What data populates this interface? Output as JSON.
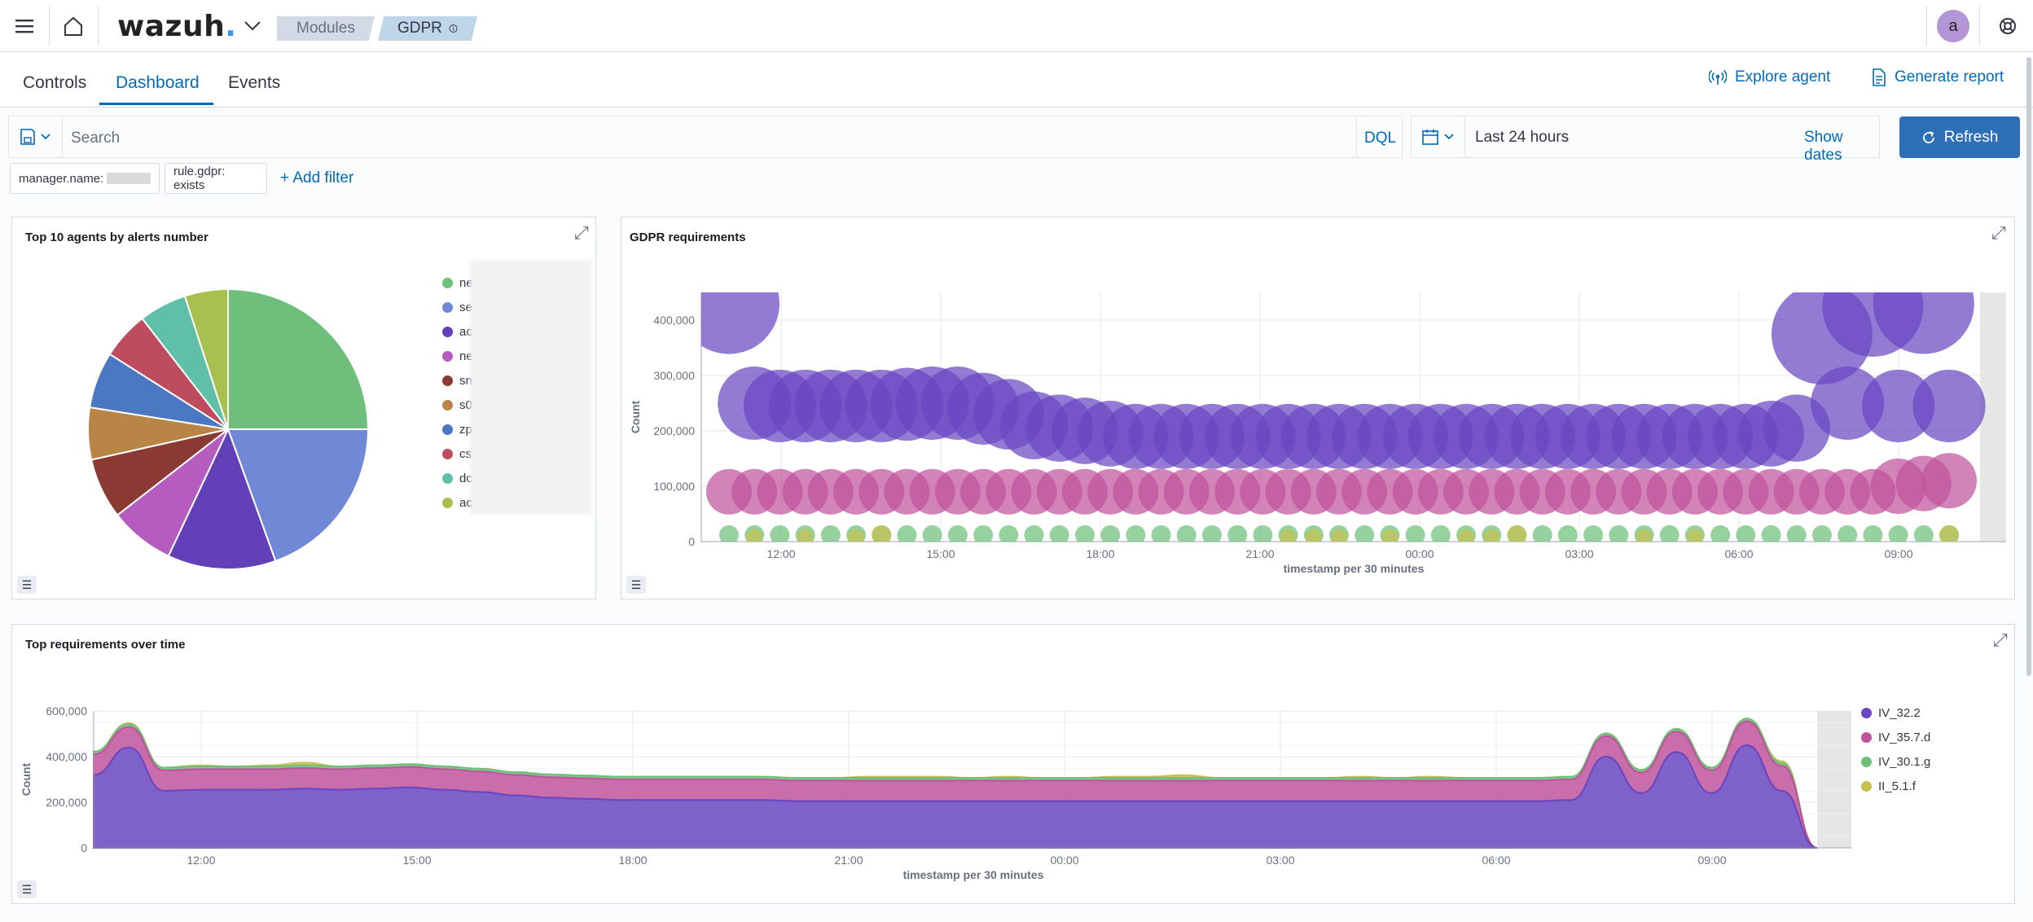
{
  "topbar": {
    "logo": "wazuh",
    "logo_dot": ".",
    "breadcrumbs": [
      "Modules",
      "GDPR"
    ],
    "avatar_letter": "a"
  },
  "tabs": [
    "Controls",
    "Dashboard",
    "Events"
  ],
  "active_tab": "Dashboard",
  "header_actions": {
    "explore_agent": "Explore agent",
    "generate_report": "Generate report"
  },
  "search": {
    "placeholder": "Search",
    "language": "DQL"
  },
  "date_picker": {
    "range": "Last 24 hours",
    "show_dates": "Show dates",
    "refresh": "Refresh"
  },
  "filters": [
    {
      "label": "manager.name:"
    },
    {
      "label": "rule.gdpr: exists"
    }
  ],
  "add_filter": "+ Add filter",
  "colors": {
    "accent": "#006bb8",
    "refresh_button": "#2c6fb7"
  },
  "panels": {
    "pie": {
      "title": "Top 10 agents by alerts number"
    },
    "bubble": {
      "title": "GDPR requirements"
    },
    "area": {
      "title": "Top requirements over time"
    }
  },
  "chart_data": [
    {
      "type": "pie",
      "title": "Top 10 agents by alerts number",
      "legend_placement": "right",
      "slices": [
        {
          "label": "ne",
          "value": 25.0,
          "color": "#6dbf7b"
        },
        {
          "label": "se",
          "value": 19.5,
          "color": "#7088d6"
        },
        {
          "label": "ac",
          "value": 12.5,
          "color": "#6140b8"
        },
        {
          "label": "ne",
          "value": 7.5,
          "color": "#b65cc0"
        },
        {
          "label": "sn",
          "value": 7.0,
          "color": "#8b3a33"
        },
        {
          "label": "s0",
          "value": 6.0,
          "color": "#b98547"
        },
        {
          "label": "zp",
          "value": 6.5,
          "color": "#4a78c2"
        },
        {
          "label": "cs",
          "value": 5.5,
          "color": "#bd4d5e"
        },
        {
          "label": "dc",
          "value": 5.5,
          "color": "#60bfa8"
        },
        {
          "label": "ac",
          "value": 5.0,
          "color": "#a7c04e"
        }
      ]
    },
    {
      "type": "scatter",
      "title": "GDPR requirements",
      "xlabel": "timestamp per 30 minutes",
      "ylabel": "Count",
      "x_ticks": [
        "12:00",
        "15:00",
        "18:00",
        "21:00",
        "00:00",
        "03:00",
        "06:00",
        "09:00"
      ],
      "y_ticks": [
        "0",
        "100,000",
        "200,000",
        "300,000",
        "400,000"
      ],
      "ylim": [
        0,
        450000
      ],
      "grid": true,
      "series": [
        {
          "color": "#6a46c2",
          "values": [
            430000,
            250000,
            245000,
            245000,
            245000,
            245000,
            245000,
            248000,
            250000,
            250000,
            240000,
            230000,
            210000,
            205000,
            200000,
            195000,
            190000,
            190000,
            190000,
            190000,
            190000,
            190000,
            190000,
            190000,
            190000,
            190000,
            190000,
            190000,
            190000,
            190000,
            190000,
            190000,
            190000,
            190000,
            190000,
            190000,
            190000,
            190000,
            190000,
            190000,
            190000,
            195000,
            205000,
            375000,
            250000,
            425000,
            245000,
            430000,
            245000
          ]
        },
        {
          "color": "#c0539c",
          "values": [
            90000,
            90000,
            90000,
            90000,
            90000,
            90000,
            90000,
            90000,
            90000,
            90000,
            90000,
            90000,
            90000,
            90000,
            90000,
            90000,
            90000,
            90000,
            90000,
            90000,
            90000,
            90000,
            90000,
            90000,
            90000,
            90000,
            90000,
            90000,
            90000,
            90000,
            90000,
            90000,
            90000,
            90000,
            90000,
            90000,
            90000,
            90000,
            90000,
            90000,
            90000,
            90000,
            90000,
            90000,
            90000,
            90000,
            100000,
            105000,
            110000
          ]
        },
        {
          "color": "#6dbf7b",
          "values": [
            12000,
            12000,
            12000,
            12000,
            12000,
            12000,
            12000,
            12000,
            12000,
            12000,
            12000,
            12000,
            12000,
            12000,
            12000,
            12000,
            12000,
            12000,
            12000,
            12000,
            12000,
            12000,
            12000,
            12000,
            12000,
            12000,
            12000,
            12000,
            12000,
            12000,
            12000,
            12000,
            12000,
            12000,
            12000,
            12000,
            12000,
            12000,
            12000,
            12000,
            12000,
            12000,
            12000,
            12000,
            12000,
            12000,
            12000,
            12000,
            12000
          ]
        },
        {
          "color": "#c7c04e",
          "values": [
            0,
            8000,
            0,
            8000,
            0,
            8000,
            12000,
            0,
            0,
            0,
            0,
            0,
            0,
            0,
            0,
            0,
            0,
            0,
            0,
            0,
            0,
            0,
            8000,
            8000,
            8000,
            0,
            8000,
            0,
            0,
            8000,
            8000,
            12000,
            0,
            0,
            0,
            0,
            8000,
            0,
            8000,
            0,
            0,
            0,
            0,
            0,
            0,
            0,
            0,
            0,
            12000
          ]
        }
      ]
    },
    {
      "type": "area",
      "title": "Top requirements over time",
      "xlabel": "timestamp per 30 minutes",
      "ylabel": "Count",
      "x_ticks": [
        "12:00",
        "15:00",
        "18:00",
        "21:00",
        "00:00",
        "03:00",
        "06:00",
        "09:00"
      ],
      "y_ticks": [
        "0",
        "200,000",
        "400,000",
        "600,000"
      ],
      "ylim": [
        0,
        600000
      ],
      "grid": true,
      "legend_placement": "right",
      "series": [
        {
          "name": "IV_32.2",
          "color": "#6a46c2",
          "values": [
            320000,
            440000,
            250000,
            255000,
            255000,
            255000,
            260000,
            255000,
            260000,
            265000,
            255000,
            245000,
            230000,
            220000,
            215000,
            210000,
            210000,
            210000,
            210000,
            210000,
            205000,
            205000,
            205000,
            205000,
            205000,
            205000,
            205000,
            205000,
            205000,
            205000,
            205000,
            205000,
            205000,
            205000,
            205000,
            205000,
            205000,
            205000,
            205000,
            205000,
            205000,
            205000,
            210000,
            400000,
            240000,
            420000,
            240000,
            450000,
            250000,
            0
          ]
        },
        {
          "name": "IV_35.7.d",
          "color": "#c0539c",
          "values": [
            90000,
            90000,
            90000,
            90000,
            90000,
            90000,
            90000,
            90000,
            90000,
            90000,
            90000,
            90000,
            90000,
            90000,
            90000,
            90000,
            90000,
            90000,
            90000,
            90000,
            90000,
            90000,
            90000,
            90000,
            90000,
            90000,
            90000,
            90000,
            90000,
            90000,
            90000,
            90000,
            90000,
            90000,
            90000,
            90000,
            90000,
            90000,
            90000,
            90000,
            90000,
            90000,
            90000,
            90000,
            90000,
            90000,
            100000,
            105000,
            110000,
            0
          ]
        },
        {
          "name": "IV_30.1.g",
          "color": "#6dbf7b",
          "values": [
            12000,
            12000,
            12000,
            12000,
            12000,
            12000,
            12000,
            12000,
            12000,
            12000,
            12000,
            12000,
            12000,
            12000,
            12000,
            12000,
            12000,
            12000,
            12000,
            12000,
            12000,
            12000,
            12000,
            12000,
            12000,
            12000,
            12000,
            12000,
            12000,
            12000,
            12000,
            12000,
            12000,
            12000,
            12000,
            12000,
            12000,
            12000,
            12000,
            12000,
            12000,
            12000,
            12000,
            12000,
            12000,
            12000,
            12000,
            12000,
            12000,
            0
          ]
        },
        {
          "name": "II_5.1.f",
          "color": "#c7c04e",
          "values": [
            0,
            5000,
            0,
            5000,
            0,
            5000,
            12000,
            0,
            0,
            0,
            0,
            0,
            0,
            0,
            0,
            0,
            0,
            0,
            0,
            0,
            0,
            0,
            5000,
            5000,
            5000,
            0,
            5000,
            0,
            0,
            5000,
            5000,
            12000,
            0,
            0,
            0,
            0,
            5000,
            0,
            5000,
            0,
            0,
            0,
            0,
            0,
            0,
            0,
            0,
            0,
            8000,
            0
          ]
        }
      ]
    }
  ]
}
